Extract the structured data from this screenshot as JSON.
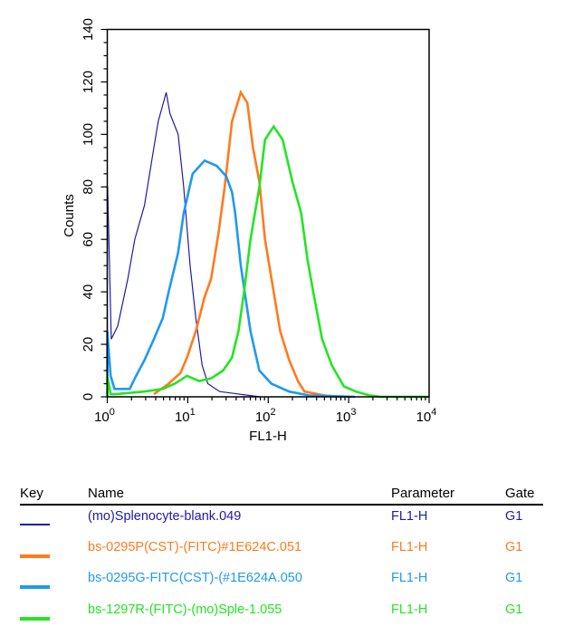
{
  "chart_data": {
    "type": "line",
    "xlabel": "FL1-H",
    "ylabel": "Counts",
    "xscale": "log",
    "xlim": [
      1,
      10000
    ],
    "ylim": [
      0,
      140
    ],
    "yticks": [
      "0",
      "20",
      "40",
      "60",
      "80",
      "100",
      "120",
      "140"
    ],
    "xticks": [
      {
        "base": "10",
        "exp": "0"
      },
      {
        "base": "10",
        "exp": "1"
      },
      {
        "base": "10",
        "exp": "2"
      },
      {
        "base": "10",
        "exp": "3"
      },
      {
        "base": "10",
        "exp": "4"
      }
    ],
    "grid": false,
    "series": [
      {
        "name": "(mo)Splenocyte-blank.049",
        "color": "#1c1ca8",
        "width": 1.2,
        "points": [
          [
            1,
            0
          ],
          [
            1,
            80
          ],
          [
            1.01,
            80
          ],
          [
            1.12,
            22
          ],
          [
            1.35,
            27
          ],
          [
            1.8,
            45
          ],
          [
            2.2,
            60
          ],
          [
            2.9,
            73
          ],
          [
            3.8,
            95
          ],
          [
            4.3,
            105
          ],
          [
            5.4,
            116
          ],
          [
            6,
            108
          ],
          [
            7.6,
            100
          ],
          [
            8.9,
            80
          ],
          [
            10.7,
            50
          ],
          [
            12.6,
            30
          ],
          [
            15.1,
            12
          ],
          [
            17.8,
            5
          ],
          [
            25,
            2
          ],
          [
            60,
            0.5
          ],
          [
            80,
            0
          ]
        ]
      },
      {
        "name": "bs-0295P(CST)-(FITC)#1E624C.051",
        "color": "#ff7a1e",
        "width": 2.6,
        "points": [
          [
            3.8,
            1
          ],
          [
            5.8,
            5
          ],
          [
            8.1,
            9
          ],
          [
            9.8,
            15
          ],
          [
            12.6,
            25
          ],
          [
            16.2,
            38
          ],
          [
            19.5,
            45
          ],
          [
            24,
            62
          ],
          [
            28.8,
            80
          ],
          [
            35.5,
            105
          ],
          [
            45.7,
            116
          ],
          [
            55,
            112
          ],
          [
            64.6,
            95
          ],
          [
            77.6,
            82
          ],
          [
            91.2,
            60
          ],
          [
            110,
            45
          ],
          [
            141,
            25
          ],
          [
            182,
            14
          ],
          [
            234,
            6
          ],
          [
            282,
            2
          ],
          [
            513,
            0.5
          ],
          [
            800,
            0
          ]
        ]
      },
      {
        "name": "bs-0295G-FITC(CST)-(#1E624A.050",
        "color": "#1e9af0",
        "width": 2.6,
        "points": [
          [
            1,
            0
          ],
          [
            1,
            25
          ],
          [
            1.1,
            8
          ],
          [
            1.23,
            3
          ],
          [
            1.9,
            3
          ],
          [
            2.2,
            7
          ],
          [
            2.9,
            14
          ],
          [
            3.8,
            22
          ],
          [
            4.9,
            30
          ],
          [
            5.8,
            40
          ],
          [
            7.6,
            55
          ],
          [
            8.9,
            70
          ],
          [
            11.5,
            85
          ],
          [
            16.2,
            90
          ],
          [
            22.9,
            88
          ],
          [
            30.2,
            84
          ],
          [
            35.5,
            78
          ],
          [
            38.9,
            70
          ],
          [
            45.7,
            50
          ],
          [
            60.3,
            25
          ],
          [
            77.6,
            10
          ],
          [
            110,
            5
          ],
          [
            182,
            2
          ],
          [
            331,
            0.5
          ],
          [
            1200,
            0
          ]
        ]
      },
      {
        "name": "bs-1297R-(FITC)-(mo)Sple-1.055",
        "color": "#22e622",
        "width": 2.6,
        "points": [
          [
            1,
            0
          ],
          [
            1,
            8
          ],
          [
            1.1,
            1
          ],
          [
            1.23,
            1
          ],
          [
            2.9,
            2
          ],
          [
            4.9,
            3
          ],
          [
            6.9,
            5
          ],
          [
            9.8,
            8
          ],
          [
            13.8,
            6
          ],
          [
            19.5,
            7
          ],
          [
            27.5,
            10
          ],
          [
            35.5,
            15
          ],
          [
            42.7,
            25
          ],
          [
            50.1,
            40
          ],
          [
            60.3,
            60
          ],
          [
            77.6,
            80
          ],
          [
            91.2,
            98
          ],
          [
            117,
            103
          ],
          [
            151,
            98
          ],
          [
            200,
            82
          ],
          [
            257,
            70
          ],
          [
            309,
            52
          ],
          [
            363,
            40
          ],
          [
            468,
            22
          ],
          [
            617,
            12
          ],
          [
            871,
            4
          ],
          [
            1230,
            2
          ],
          [
            1862,
            0.5
          ],
          [
            2500,
            0
          ],
          [
            10000,
            0
          ]
        ]
      }
    ]
  },
  "legend": {
    "headers": {
      "key": "Key",
      "name": "Name",
      "parameter": "Parameter",
      "gate": "Gate"
    },
    "rows": [
      {
        "name": "(mo)Splenocyte-blank.049",
        "parameter": "FL1-H",
        "gate": "G1",
        "color": "#1c1ca8"
      },
      {
        "name": "bs-0295P(CST)-(FITC)#1E624C.051",
        "parameter": "FL1-H",
        "gate": "G1",
        "color": "#ff7a1e"
      },
      {
        "name": "bs-0295G-FITC(CST)-(#1E624A.050",
        "parameter": "FL1-H",
        "gate": "G1",
        "color": "#1e9af0"
      },
      {
        "name": "bs-1297R-(FITC)-(mo)Sple-1.055",
        "parameter": "FL1-H",
        "gate": "G1",
        "color": "#22e622"
      }
    ]
  }
}
